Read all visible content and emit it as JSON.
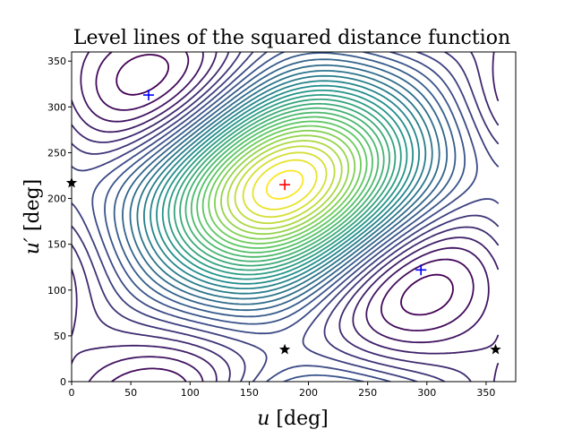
{
  "chart_data": {
    "type": "contour",
    "title": "Level lines of the squared distance function",
    "xlabel_var": "u",
    "xlabel_unit": " [deg]",
    "ylabel_var": "u′",
    "ylabel_unit": " [deg]",
    "xlim": [
      0,
      375
    ],
    "ylim": [
      0,
      360
    ],
    "xticks": [
      0,
      50,
      100,
      150,
      200,
      250,
      300,
      350
    ],
    "yticks": [
      0,
      50,
      100,
      150,
      200,
      250,
      300,
      350
    ],
    "colormap": "viridis",
    "colormap_stops": [
      "#440154",
      "#3b528b",
      "#21918c",
      "#5ec962",
      "#fde725"
    ],
    "level_count": 32,
    "maximum": {
      "u": 180,
      "u_prime": 215
    },
    "markers": {
      "max_point": {
        "symbol": "plus",
        "color": "#ff0000",
        "points": [
          [
            180,
            215
          ]
        ]
      },
      "saddle_points": {
        "symbol": "plus",
        "color": "#0000ff",
        "points": [
          [
            65,
            313
          ],
          [
            295,
            122
          ]
        ]
      },
      "boundary_points": {
        "symbol": "star",
        "color": "#000000",
        "points": [
          [
            0,
            217
          ],
          [
            180,
            35
          ],
          [
            358,
            35
          ]
        ]
      }
    }
  }
}
